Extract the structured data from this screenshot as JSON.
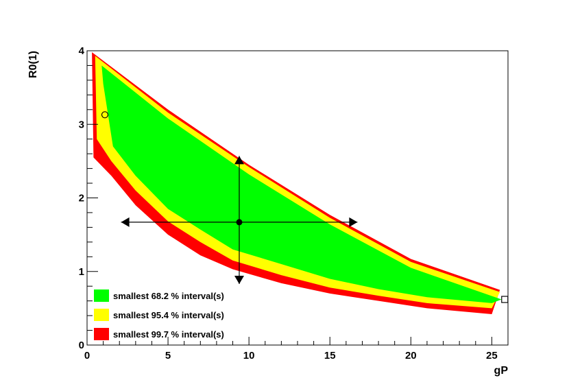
{
  "chart_data": {
    "type": "heatmap",
    "xlabel": "gP",
    "ylabel": "R0(1)",
    "xlim": [
      0,
      26
    ],
    "ylim": [
      0,
      4
    ],
    "xticks": [
      0,
      5,
      10,
      15,
      20,
      25
    ],
    "yticks": [
      0,
      1,
      2,
      3,
      4
    ],
    "grid": false,
    "legend_position": "bottom-left",
    "legend": [
      {
        "label": "smallest 68.2 % interval(s)",
        "color": "#00ff00"
      },
      {
        "label": "smallest 95.4 % interval(s)",
        "color": "#ffff00"
      },
      {
        "label": "smallest 99.7 % interval(s)",
        "color": "#ff0000"
      }
    ],
    "regions": {
      "interval_99_7": {
        "color": "#ff0000",
        "upper": [
          [
            0.3,
            3.98
          ],
          [
            5,
            3.2
          ],
          [
            10,
            2.45
          ],
          [
            15,
            1.77
          ],
          [
            20,
            1.17
          ],
          [
            25.5,
            0.75
          ]
        ],
        "lower": [
          [
            0.4,
            2.55
          ],
          [
            1.5,
            2.3
          ],
          [
            3,
            1.9
          ],
          [
            5,
            1.5
          ],
          [
            7,
            1.22
          ],
          [
            9,
            1.03
          ],
          [
            12,
            0.84
          ],
          [
            15,
            0.7
          ],
          [
            18,
            0.6
          ],
          [
            21,
            0.5
          ],
          [
            25,
            0.42
          ]
        ]
      },
      "interval_95_4": {
        "color": "#ffff00",
        "upper": [
          [
            0.5,
            3.93
          ],
          [
            5,
            3.16
          ],
          [
            10,
            2.42
          ],
          [
            15,
            1.73
          ],
          [
            20,
            1.13
          ],
          [
            25.5,
            0.72
          ]
        ],
        "lower": [
          [
            0.6,
            2.8
          ],
          [
            1.5,
            2.5
          ],
          [
            3,
            2.1
          ],
          [
            5,
            1.68
          ],
          [
            7,
            1.4
          ],
          [
            9,
            1.15
          ],
          [
            12,
            0.95
          ],
          [
            15,
            0.78
          ],
          [
            18,
            0.67
          ],
          [
            21,
            0.57
          ],
          [
            25,
            0.5
          ]
        ]
      },
      "interval_68_2": {
        "color": "#00ff00",
        "upper": [
          [
            0.9,
            3.8
          ],
          [
            5,
            3.08
          ],
          [
            10,
            2.32
          ],
          [
            15,
            1.64
          ],
          [
            20,
            1.05
          ],
          [
            25.6,
            0.62
          ]
        ],
        "lower": [
          [
            1.0,
            3.55
          ],
          [
            1.6,
            2.7
          ],
          [
            3,
            2.3
          ],
          [
            5,
            1.85
          ],
          [
            7,
            1.57
          ],
          [
            9,
            1.3
          ],
          [
            12,
            1.1
          ],
          [
            15,
            0.9
          ],
          [
            18,
            0.76
          ],
          [
            21,
            0.65
          ],
          [
            25,
            0.57
          ]
        ]
      }
    },
    "markers": {
      "mean": {
        "x": 9.4,
        "y": 1.67,
        "shape": "filled-circle"
      },
      "x_error": [
        2.1,
        16.7
      ],
      "y_error": [
        0.83,
        2.57
      ],
      "global_mode": {
        "x": 1.1,
        "y": 3.13,
        "shape": "open-circle"
      },
      "local_mode": {
        "x": 25.8,
        "y": 0.62,
        "shape": "open-square"
      }
    }
  }
}
